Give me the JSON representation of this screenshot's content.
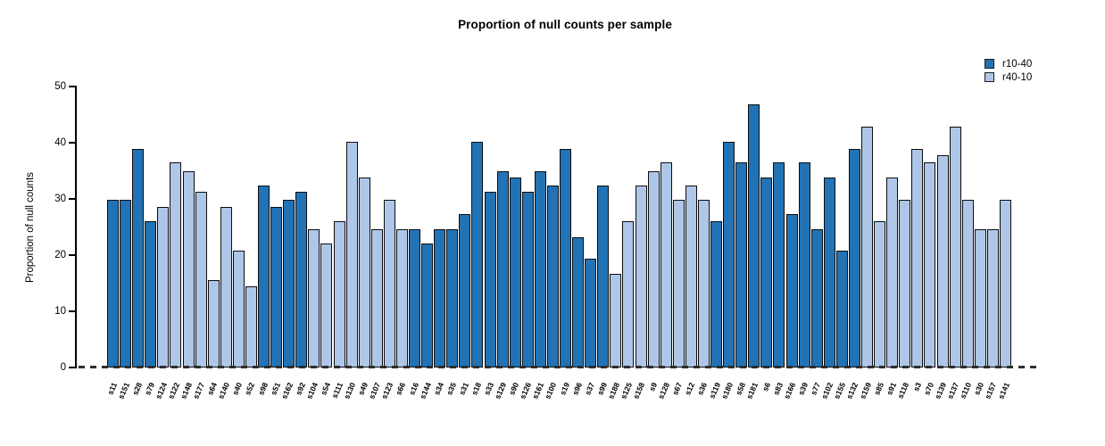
{
  "title": "Proportion of null counts per sample",
  "legend": {
    "items": [
      {
        "label": "r10-40",
        "color": "#2173b6"
      },
      {
        "label": "r40-10",
        "color": "#aec7e8"
      }
    ]
  },
  "chart_data": {
    "type": "bar",
    "title": "Proportion of null counts per sample",
    "xlabel": "",
    "ylabel": "Proportion of null counts",
    "ylim": [
      0,
      50
    ],
    "yticks": [
      0,
      10,
      20,
      30,
      40,
      50
    ],
    "grid": false,
    "legend_position": "top-right",
    "baseline": "dashed zero line",
    "series_colors": {
      "r10-40": "#2173b6",
      "r40-10": "#aec7e8"
    },
    "bar_border_color": "#0d0d0d",
    "bars": [
      {
        "label": "s11",
        "value": 29.8,
        "series": "r10-40"
      },
      {
        "label": "s151",
        "value": 29.8,
        "series": "r10-40"
      },
      {
        "label": "s28",
        "value": 38.9,
        "series": "r10-40"
      },
      {
        "label": "s79",
        "value": 26.0,
        "series": "r10-40"
      },
      {
        "label": "s124",
        "value": 28.5,
        "series": "r40-10"
      },
      {
        "label": "s122",
        "value": 36.5,
        "series": "r40-10"
      },
      {
        "label": "s148",
        "value": 35.0,
        "series": "r40-10"
      },
      {
        "label": "s177",
        "value": 31.2,
        "series": "r40-10"
      },
      {
        "label": "s64",
        "value": 15.6,
        "series": "r40-10"
      },
      {
        "label": "s140",
        "value": 28.5,
        "series": "r40-10"
      },
      {
        "label": "s40",
        "value": 20.8,
        "series": "r40-10"
      },
      {
        "label": "s52",
        "value": 14.4,
        "series": "r40-10"
      },
      {
        "label": "s98",
        "value": 32.4,
        "series": "r10-40"
      },
      {
        "label": "s51",
        "value": 28.5,
        "series": "r10-40"
      },
      {
        "label": "s162",
        "value": 29.8,
        "series": "r10-40"
      },
      {
        "label": "s92",
        "value": 31.2,
        "series": "r10-40"
      },
      {
        "label": "s104",
        "value": 24.6,
        "series": "r40-10"
      },
      {
        "label": "s54",
        "value": 22.0,
        "series": "r40-10"
      },
      {
        "label": "s111",
        "value": 26.0,
        "series": "r40-10"
      },
      {
        "label": "s130",
        "value": 40.2,
        "series": "r40-10"
      },
      {
        "label": "s49",
        "value": 33.8,
        "series": "r40-10"
      },
      {
        "label": "s107",
        "value": 24.6,
        "series": "r40-10"
      },
      {
        "label": "s123",
        "value": 29.8,
        "series": "r40-10"
      },
      {
        "label": "s66",
        "value": 24.6,
        "series": "r40-10"
      },
      {
        "label": "s16",
        "value": 24.6,
        "series": "r10-40"
      },
      {
        "label": "s144",
        "value": 22.0,
        "series": "r10-40"
      },
      {
        "label": "s34",
        "value": 24.6,
        "series": "r10-40"
      },
      {
        "label": "s35",
        "value": 24.6,
        "series": "r10-40"
      },
      {
        "label": "s31",
        "value": 27.3,
        "series": "r10-40"
      },
      {
        "label": "s18",
        "value": 40.2,
        "series": "r10-40"
      },
      {
        "label": "s33",
        "value": 31.2,
        "series": "r10-40"
      },
      {
        "label": "s129",
        "value": 35.0,
        "series": "r10-40"
      },
      {
        "label": "s90",
        "value": 33.8,
        "series": "r10-40"
      },
      {
        "label": "s126",
        "value": 31.2,
        "series": "r10-40"
      },
      {
        "label": "s161",
        "value": 35.0,
        "series": "r10-40"
      },
      {
        "label": "s100",
        "value": 32.4,
        "series": "r10-40"
      },
      {
        "label": "s19",
        "value": 38.9,
        "series": "r10-40"
      },
      {
        "label": "s96",
        "value": 23.2,
        "series": "r10-40"
      },
      {
        "label": "s37",
        "value": 19.4,
        "series": "r10-40"
      },
      {
        "label": "s99",
        "value": 32.4,
        "series": "r10-40"
      },
      {
        "label": "s188",
        "value": 16.7,
        "series": "r40-10"
      },
      {
        "label": "s125",
        "value": 26.0,
        "series": "r40-10"
      },
      {
        "label": "s158",
        "value": 32.4,
        "series": "r40-10"
      },
      {
        "label": "s9",
        "value": 35.0,
        "series": "r40-10"
      },
      {
        "label": "s128",
        "value": 36.5,
        "series": "r40-10"
      },
      {
        "label": "s67",
        "value": 29.8,
        "series": "r40-10"
      },
      {
        "label": "s12",
        "value": 32.4,
        "series": "r40-10"
      },
      {
        "label": "s36",
        "value": 29.8,
        "series": "r40-10"
      },
      {
        "label": "s119",
        "value": 26.0,
        "series": "r10-40"
      },
      {
        "label": "s180",
        "value": 40.2,
        "series": "r10-40"
      },
      {
        "label": "s58",
        "value": 36.5,
        "series": "r10-40"
      },
      {
        "label": "s181",
        "value": 46.9,
        "series": "r10-40"
      },
      {
        "label": "s6",
        "value": 33.8,
        "series": "r10-40"
      },
      {
        "label": "s83",
        "value": 36.5,
        "series": "r10-40"
      },
      {
        "label": "s166",
        "value": 27.3,
        "series": "r10-40"
      },
      {
        "label": "s39",
        "value": 36.5,
        "series": "r10-40"
      },
      {
        "label": "s77",
        "value": 24.6,
        "series": "r10-40"
      },
      {
        "label": "s102",
        "value": 33.8,
        "series": "r10-40"
      },
      {
        "label": "s155",
        "value": 20.8,
        "series": "r10-40"
      },
      {
        "label": "s132",
        "value": 38.9,
        "series": "r10-40"
      },
      {
        "label": "s159",
        "value": 42.9,
        "series": "r40-10"
      },
      {
        "label": "s85",
        "value": 26.0,
        "series": "r40-10"
      },
      {
        "label": "s91",
        "value": 33.8,
        "series": "r40-10"
      },
      {
        "label": "s118",
        "value": 29.8,
        "series": "r40-10"
      },
      {
        "label": "s3",
        "value": 38.9,
        "series": "r40-10"
      },
      {
        "label": "s70",
        "value": 36.5,
        "series": "r40-10"
      },
      {
        "label": "s139",
        "value": 37.8,
        "series": "r40-10"
      },
      {
        "label": "s137",
        "value": 42.9,
        "series": "r40-10"
      },
      {
        "label": "s110",
        "value": 29.8,
        "series": "r40-10"
      },
      {
        "label": "s30",
        "value": 24.6,
        "series": "r40-10"
      },
      {
        "label": "s157",
        "value": 24.6,
        "series": "r40-10"
      },
      {
        "label": "s141",
        "value": 29.8,
        "series": "r40-10"
      }
    ]
  }
}
